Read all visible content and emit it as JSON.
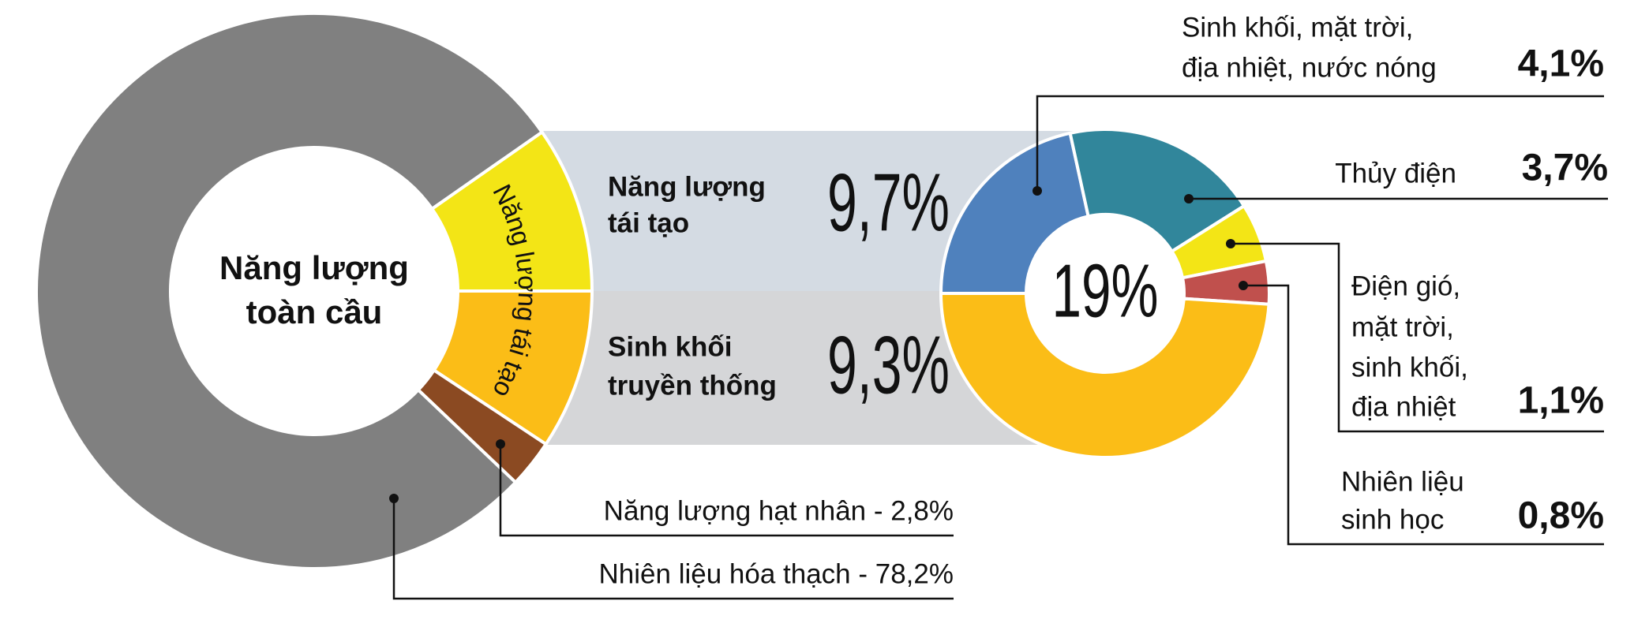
{
  "chart_data": [
    {
      "type": "donut",
      "center_label": [
        "Năng lượng",
        "toàn cầu"
      ],
      "ring_label": "Năng lượng tái tạo",
      "labels": [
        [
          "Năng lượng",
          "tái tạo"
        ],
        [
          "Sinh khối",
          "truyền thống"
        ],
        [
          "Năng lượng hạt nhân - 2,8%"
        ],
        [
          "Nhiên liệu hóa thạch - 78,2%"
        ]
      ],
      "values": [
        9.7,
        9.3,
        2.8,
        78.2
      ],
      "value_labels": [
        "9,7%",
        "9,3%",
        null,
        null
      ],
      "colors": [
        "#f3e516",
        "#fbbd17",
        "#8b4a22",
        "#808080"
      ]
    },
    {
      "type": "donut",
      "center_value": 19,
      "center_label": "19%",
      "labels": [
        [
          "Sinh khối, mặt trời,",
          "địa nhiệt, nước nóng"
        ],
        [
          "Thủy điện"
        ],
        [
          "Điện gió,",
          "mặt trời,",
          "sinh khối,",
          "địa nhiệt"
        ],
        [
          "Nhiên liệu",
          "sinh học"
        ],
        null
      ],
      "values": [
        4.1,
        3.7,
        1.1,
        0.8,
        9.3
      ],
      "value_labels": [
        "4,1%",
        "3,7%",
        "1,1%",
        "0,8%",
        null
      ],
      "colors": [
        "#4f81bd",
        "#31869b",
        "#f3e516",
        "#c0504d",
        "#fbbd17"
      ]
    }
  ]
}
